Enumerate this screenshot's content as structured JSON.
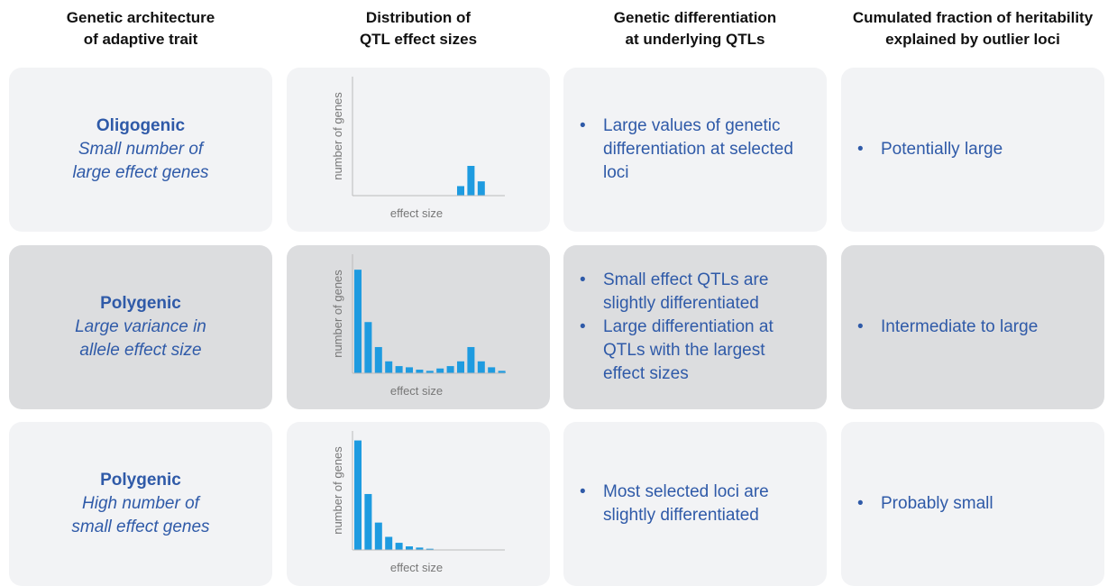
{
  "headers": [
    [
      "Genetic architecture",
      "of adaptive trait"
    ],
    [
      "Distribution of",
      "QTL effect sizes"
    ],
    [
      "Genetic differentiation",
      "at underlying QTLs"
    ],
    [
      "Cumulated fraction of heritability",
      "explained by outlier loci"
    ]
  ],
  "rows": [
    {
      "architecture": {
        "title": "Oligogenic",
        "subtitle": [
          "Small number of",
          "large effect genes"
        ]
      },
      "chart": {
        "type": "bar",
        "y_label": "number of genes",
        "x_label": "effect size",
        "ylim": [
          0,
          100
        ],
        "values": [
          0,
          0,
          0,
          0,
          0,
          0,
          0,
          0,
          0,
          0,
          8,
          25,
          12,
          0,
          0
        ]
      },
      "differentiation": [
        "Large values of genetic differentiation at selected loci"
      ],
      "heritability": [
        "Potentially large"
      ]
    },
    {
      "architecture": {
        "title": "Polygenic",
        "subtitle": [
          "Large variance in",
          "allele effect size"
        ]
      },
      "chart": {
        "type": "bar",
        "y_label": "number of genes",
        "x_label": "effect size",
        "ylim": [
          0,
          100
        ],
        "values": [
          87,
          43,
          22,
          10,
          6,
          5,
          3,
          2,
          4,
          6,
          10,
          22,
          10,
          5,
          2
        ]
      },
      "differentiation": [
        "Small effect QTLs are slightly differentiated",
        "Large differentiation at QTLs with the largest effect sizes"
      ],
      "heritability": [
        "Intermediate to large"
      ]
    },
    {
      "architecture": {
        "title": "Polygenic",
        "subtitle": [
          "High number of",
          "small effect genes"
        ]
      },
      "chart": {
        "type": "bar",
        "y_label": "number of genes",
        "x_label": "effect size",
        "ylim": [
          0,
          100
        ],
        "values": [
          92,
          47,
          23,
          11,
          6,
          3,
          2,
          1,
          0,
          0,
          0,
          0,
          0,
          0,
          0
        ]
      },
      "differentiation": [
        "Most selected loci are slightly differentiated"
      ],
      "heritability": [
        "Probably small"
      ]
    }
  ]
}
